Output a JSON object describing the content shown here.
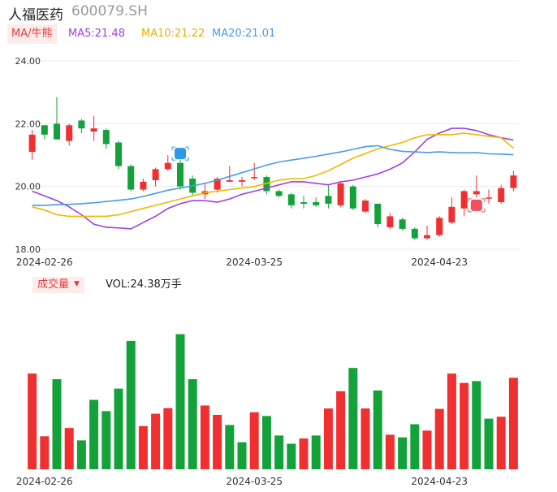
{
  "header": {
    "name": "人福医药",
    "code": "600079.SH"
  },
  "ma_legend": {
    "tag": "MA/牛熊",
    "ma5": "MA5:21.48",
    "ma10": "MA10:21.22",
    "ma20": "MA20:21.01"
  },
  "volume_legend": {
    "tag": "成交量",
    "value": "VOL:24.38万手"
  },
  "colors": {
    "up": "#f03030",
    "down": "#13a23a",
    "ma5": "#a040e0",
    "ma10": "#f0b800",
    "ma20": "#4a9be8",
    "price_axis_top": "#e03c3c",
    "price_axis_bottom": "#13a23a"
  },
  "chart_data": [
    {
      "type": "candlestick",
      "title": "",
      "xlabel": "",
      "ylabel": "",
      "ylim": [
        18.0,
        24.0
      ],
      "y_ticks": [
        "24.00",
        "22.00",
        "20.00",
        "18.00"
      ],
      "x_tick_labels": [
        {
          "index": 1,
          "label": "2024-02-26"
        },
        {
          "index": 18,
          "label": "2024-03-25"
        },
        {
          "index": 33,
          "label": "2024-04-23"
        }
      ],
      "grid": true,
      "series": [
        {
          "name": "MA5",
          "values": [
            19.85,
            19.7,
            19.55,
            19.35,
            19.1,
            18.8,
            18.7,
            18.68,
            18.65,
            18.85,
            19.05,
            19.3,
            19.45,
            19.55,
            19.55,
            19.5,
            19.6,
            19.75,
            19.85,
            19.95,
            20.05,
            20.15,
            20.15,
            20.1,
            20.05,
            20.15,
            20.2,
            20.3,
            20.4,
            20.55,
            20.75,
            21.1,
            21.5,
            21.7,
            21.85,
            21.85,
            21.78,
            21.65,
            21.55,
            21.48
          ]
        },
        {
          "name": "MA10",
          "values": [
            19.35,
            19.25,
            19.1,
            19.05,
            19.05,
            19.05,
            19.05,
            19.1,
            19.2,
            19.3,
            19.4,
            19.5,
            19.6,
            19.7,
            19.8,
            19.85,
            19.9,
            19.95,
            20.0,
            20.1,
            20.2,
            20.25,
            20.25,
            20.35,
            20.5,
            20.7,
            20.9,
            21.05,
            21.2,
            21.3,
            21.4,
            21.55,
            21.65,
            21.65,
            21.65,
            21.7,
            21.65,
            21.6,
            21.55,
            21.22
          ]
        },
        {
          "name": "MA20",
          "values": [
            19.4,
            19.4,
            19.42,
            19.43,
            19.45,
            19.48,
            19.52,
            19.56,
            19.6,
            19.68,
            19.78,
            19.88,
            19.95,
            20.02,
            20.1,
            20.2,
            20.32,
            20.44,
            20.56,
            20.68,
            20.78,
            20.84,
            20.9,
            20.96,
            21.03,
            21.1,
            21.18,
            21.27,
            21.3,
            21.18,
            21.12,
            21.1,
            21.08,
            21.1,
            21.08,
            21.07,
            21.08,
            21.04,
            21.03,
            21.01
          ]
        }
      ],
      "candles": [
        {
          "open": 21.1,
          "close": 21.65,
          "high": 21.8,
          "low": 20.85
        },
        {
          "open": 21.95,
          "close": 21.65,
          "high": 21.95,
          "low": 21.5
        },
        {
          "open": 22.0,
          "close": 21.5,
          "high": 22.85,
          "low": 21.5
        },
        {
          "open": 21.45,
          "close": 21.95,
          "high": 22.0,
          "low": 21.3
        },
        {
          "open": 22.1,
          "close": 21.85,
          "high": 22.15,
          "low": 21.7
        },
        {
          "open": 21.75,
          "close": 21.85,
          "high": 22.25,
          "low": 21.45
        },
        {
          "open": 21.8,
          "close": 21.35,
          "high": 21.85,
          "low": 21.2
        },
        {
          "open": 21.4,
          "close": 20.65,
          "high": 21.45,
          "low": 20.55
        },
        {
          "open": 20.65,
          "close": 19.9,
          "high": 20.7,
          "low": 19.85
        },
        {
          "open": 19.9,
          "close": 20.15,
          "high": 20.25,
          "low": 19.85
        },
        {
          "open": 20.2,
          "close": 20.55,
          "high": 20.6,
          "low": 20.0
        },
        {
          "open": 20.55,
          "close": 20.75,
          "high": 21.0,
          "low": 20.5
        },
        {
          "open": 20.75,
          "close": 20.0,
          "high": 20.85,
          "low": 19.9
        },
        {
          "open": 20.25,
          "close": 19.8,
          "high": 20.35,
          "low": 19.7
        },
        {
          "open": 19.75,
          "close": 19.85,
          "high": 20.1,
          "low": 19.6
        },
        {
          "open": 19.9,
          "close": 20.25,
          "high": 20.3,
          "low": 19.8
        },
        {
          "open": 20.15,
          "close": 20.2,
          "high": 20.65,
          "low": 20.15
        },
        {
          "open": 20.15,
          "close": 20.2,
          "high": 20.3,
          "low": 20.0
        },
        {
          "open": 20.3,
          "close": 20.3,
          "high": 20.75,
          "low": 20.2
        },
        {
          "open": 20.3,
          "close": 19.85,
          "high": 20.35,
          "low": 19.75
        },
        {
          "open": 19.85,
          "close": 19.7,
          "high": 19.9,
          "low": 19.65
        },
        {
          "open": 19.75,
          "close": 19.4,
          "high": 19.8,
          "low": 19.3
        },
        {
          "open": 19.5,
          "close": 19.45,
          "high": 19.7,
          "low": 19.3
        },
        {
          "open": 19.5,
          "close": 19.4,
          "high": 19.65,
          "low": 19.35
        },
        {
          "open": 19.7,
          "close": 19.45,
          "high": 20.05,
          "low": 19.3
        },
        {
          "open": 19.4,
          "close": 20.1,
          "high": 20.15,
          "low": 19.35
        },
        {
          "open": 20.0,
          "close": 19.3,
          "high": 20.05,
          "low": 19.25
        },
        {
          "open": 19.2,
          "close": 19.55,
          "high": 19.6,
          "low": 19.15
        },
        {
          "open": 19.45,
          "close": 18.8,
          "high": 19.45,
          "low": 18.7
        },
        {
          "open": 18.7,
          "close": 19.05,
          "high": 19.15,
          "low": 18.65
        },
        {
          "open": 18.95,
          "close": 18.65,
          "high": 19.0,
          "low": 18.6
        },
        {
          "open": 18.65,
          "close": 18.35,
          "high": 18.7,
          "low": 18.3
        },
        {
          "open": 18.35,
          "close": 18.45,
          "high": 18.75,
          "low": 18.3
        },
        {
          "open": 18.45,
          "close": 19.0,
          "high": 19.05,
          "low": 18.4
        },
        {
          "open": 18.85,
          "close": 19.35,
          "high": 19.65,
          "low": 18.8
        },
        {
          "open": 19.3,
          "close": 19.85,
          "high": 19.9,
          "low": 19.05
        },
        {
          "open": 19.75,
          "close": 19.85,
          "high": 20.35,
          "low": 19.65
        },
        {
          "open": 19.65,
          "close": 19.65,
          "high": 19.9,
          "low": 19.45
        },
        {
          "open": 19.5,
          "close": 19.95,
          "high": 20.05,
          "low": 19.45
        },
        {
          "open": 19.95,
          "close": 20.35,
          "high": 20.5,
          "low": 19.85
        }
      ]
    },
    {
      "type": "bar",
      "title": "",
      "xlabel": "",
      "ylabel": "",
      "unit": "万手",
      "ylim": [
        0,
        45
      ],
      "values": [
        25.5,
        8.8,
        24.0,
        11.0,
        7.7,
        18.5,
        15.5,
        21.5,
        34.2,
        11.5,
        14.8,
        16.3,
        36.0,
        24.0,
        17.0,
        14.5,
        11.8,
        7.2,
        15.2,
        14.2,
        9.0,
        6.8,
        8.2,
        9.0,
        16.2,
        20.8,
        27.0,
        16.2,
        21.0,
        9.2,
        8.5,
        12.0,
        10.3,
        16.1,
        25.5,
        23.0,
        23.5,
        13.5,
        14.0,
        24.38
      ],
      "directions": [
        "up",
        "up",
        "down",
        "up",
        "down",
        "down",
        "down",
        "down",
        "down",
        "up",
        "up",
        "up",
        "down",
        "down",
        "up",
        "up",
        "down",
        "down",
        "up",
        "down",
        "down",
        "down",
        "up",
        "down",
        "up",
        "up",
        "down",
        "up",
        "down",
        "up",
        "down",
        "down",
        "up",
        "up",
        "up",
        "up",
        "down",
        "down",
        "up",
        "up"
      ]
    }
  ]
}
